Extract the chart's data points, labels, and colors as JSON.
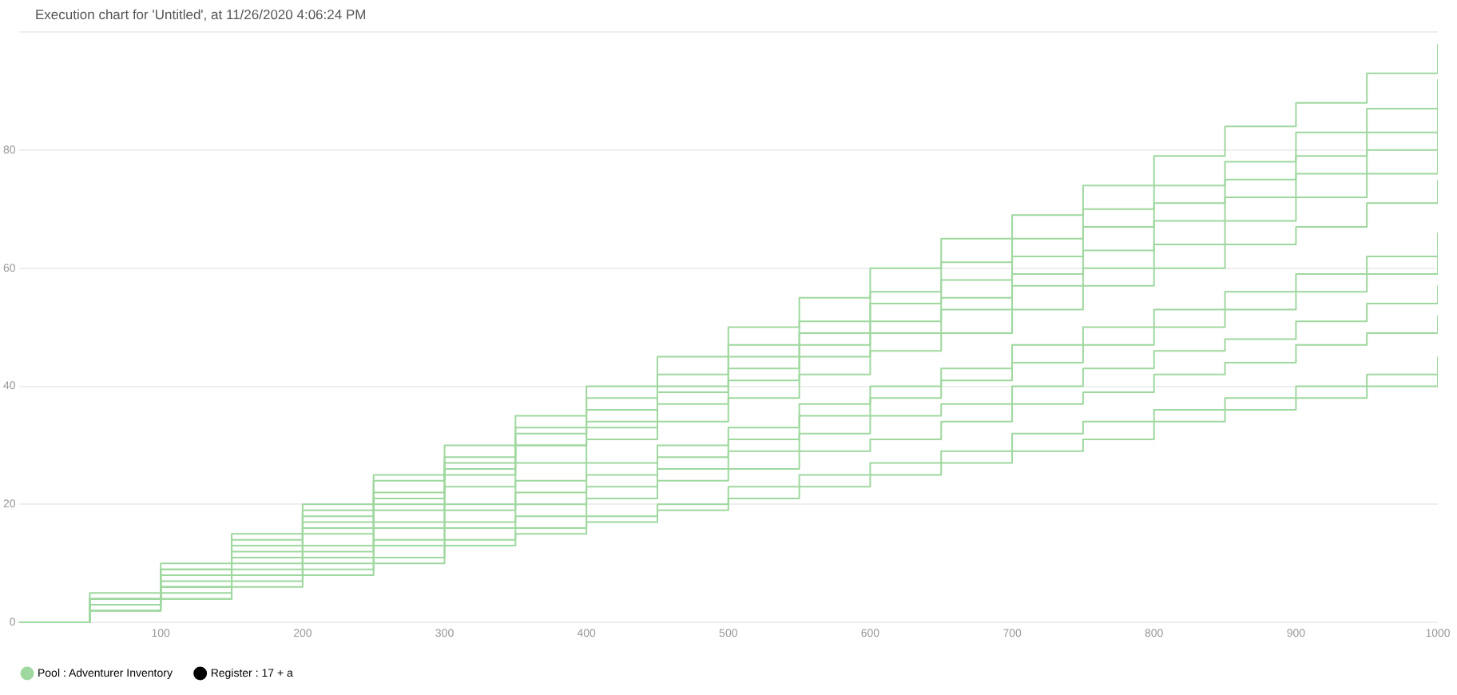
{
  "chart_data": {
    "type": "step",
    "title": "Execution chart for 'Untitled', at 11/26/2020 4:06:24 PM",
    "x": [
      0,
      50,
      100,
      150,
      200,
      250,
      300,
      350,
      400,
      450,
      500,
      550,
      600,
      650,
      700,
      750,
      800,
      850,
      900,
      950,
      1000
    ],
    "xlim": [
      0,
      1000
    ],
    "xticks": [
      100,
      200,
      300,
      400,
      500,
      600,
      700,
      800,
      900,
      1000
    ],
    "ylim": [
      0,
      100
    ],
    "yticks": [
      0,
      20,
      40,
      60,
      80,
      {
        "value": 100,
        "label": null
      }
    ],
    "grid": "y",
    "legend": "bottom left",
    "marker": "none",
    "line_style": "solid",
    "series": [
      {
        "name": "Pool : Adventurer Inventory",
        "color": "#9fd89f",
        "values": [
          0,
          5,
          10,
          15,
          20,
          25,
          30,
          35,
          40,
          45,
          50,
          55,
          60,
          65,
          69,
          74,
          79,
          84,
          88,
          93,
          98
        ]
      },
      {
        "color": "#9fd89f",
        "values": [
          0,
          4,
          9,
          14,
          19,
          24,
          28,
          33,
          38,
          42,
          47,
          51,
          56,
          61,
          65,
          70,
          74,
          78,
          83,
          87,
          92
        ]
      },
      {
        "color": "#9fd89f",
        "values": [
          0,
          4,
          9,
          13,
          18,
          22,
          27,
          32,
          36,
          40,
          45,
          49,
          54,
          58,
          62,
          67,
          71,
          75,
          79,
          83,
          88
        ]
      },
      {
        "color": "#9fd89f",
        "values": [
          0,
          4,
          8,
          13,
          17,
          21,
          26,
          30,
          34,
          39,
          43,
          47,
          51,
          55,
          59,
          63,
          68,
          72,
          76,
          80,
          84
        ]
      },
      {
        "color": "#9fd89f",
        "values": [
          0,
          4,
          8,
          12,
          16,
          20,
          25,
          30,
          33,
          37,
          41,
          45,
          49,
          53,
          57,
          60,
          64,
          68,
          72,
          76,
          80
        ]
      },
      {
        "color": "#9fd89f",
        "values": [
          0,
          3,
          7,
          11,
          15,
          19,
          23,
          27,
          31,
          34,
          38,
          42,
          46,
          49,
          53,
          57,
          60,
          64,
          67,
          71,
          75
        ]
      },
      {
        "color": "#9fd89f",
        "values": [
          0,
          3,
          6,
          10,
          13,
          17,
          20,
          24,
          27,
          30,
          33,
          37,
          40,
          43,
          47,
          50,
          53,
          56,
          59,
          62,
          66
        ]
      },
      {
        "color": "#9fd89f",
        "values": [
          0,
          3,
          6,
          9,
          12,
          16,
          19,
          22,
          25,
          28,
          31,
          35,
          38,
          41,
          44,
          47,
          50,
          53,
          56,
          59,
          62
        ]
      },
      {
        "color": "#9fd89f",
        "values": [
          0,
          3,
          6,
          8,
          11,
          14,
          17,
          20,
          23,
          26,
          29,
          32,
          35,
          37,
          40,
          43,
          46,
          48,
          51,
          54,
          57
        ]
      },
      {
        "color": "#9fd89f",
        "values": [
          0,
          2,
          5,
          8,
          10,
          13,
          16,
          18,
          21,
          24,
          26,
          29,
          31,
          34,
          37,
          39,
          42,
          44,
          47,
          49,
          52
        ]
      },
      {
        "color": "#9fd89f",
        "values": [
          0,
          2,
          4,
          7,
          9,
          11,
          14,
          16,
          18,
          20,
          23,
          25,
          27,
          29,
          32,
          34,
          36,
          38,
          40,
          42,
          45
        ]
      },
      {
        "color": "#9fd89f",
        "values": [
          0,
          2,
          4,
          6,
          8,
          10,
          13,
          15,
          17,
          19,
          21,
          23,
          25,
          27,
          29,
          31,
          34,
          36,
          38,
          40,
          42
        ]
      },
      {
        "name": "Register : 17 + a",
        "color": "#000000",
        "values": [
          null,
          null,
          null,
          null,
          null,
          null,
          null,
          null,
          null,
          null,
          null,
          null,
          null,
          null,
          null,
          null,
          null,
          null,
          null,
          null,
          null
        ]
      }
    ]
  }
}
